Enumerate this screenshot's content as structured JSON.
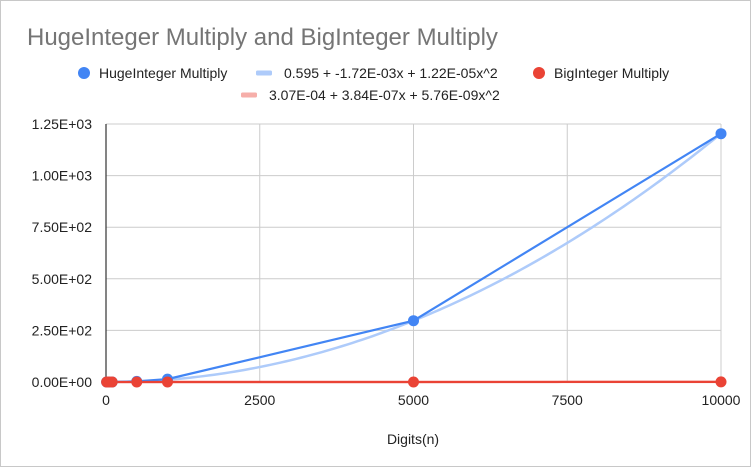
{
  "chart_data": {
    "type": "scatter",
    "title": "HugeInteger Multiply and BigInteger Multiply",
    "xlabel": "Digits(n)",
    "ylabel": "",
    "xlim": [
      0,
      10000
    ],
    "ylim": [
      0,
      1250
    ],
    "x_ticks": [
      {
        "value": 0,
        "label": "0"
      },
      {
        "value": 2500,
        "label": "2500"
      },
      {
        "value": 5000,
        "label": "5000"
      },
      {
        "value": 7500,
        "label": "7500"
      },
      {
        "value": 10000,
        "label": "10000"
      }
    ],
    "y_ticks": [
      {
        "value": 0,
        "label": "0.00E+00"
      },
      {
        "value": 250,
        "label": "2.50E+02"
      },
      {
        "value": 500,
        "label": "5.00E+02"
      },
      {
        "value": 750,
        "label": "7.50E+02"
      },
      {
        "value": 1000,
        "label": "1.00E+03"
      },
      {
        "value": 1250,
        "label": "1.25E+03"
      }
    ],
    "grid": true,
    "legend_position": "top",
    "series": [
      {
        "name": "HugeInteger Multiply",
        "color": "#4285f4",
        "x": [
          10,
          50,
          100,
          500,
          1000,
          5000,
          10000
        ],
        "y": [
          0.01,
          0.05,
          0.15,
          3,
          14,
          297,
          1203
        ],
        "trendline": {
          "label": "0.595 + -1.72E-03x + 1.22E-05x^2",
          "coefficients": [
            0.595,
            -0.00172,
            1.22e-05
          ],
          "color": "#aecbfa"
        }
      },
      {
        "name": "BigInteger Multiply",
        "color": "#ea4335",
        "x": [
          10,
          50,
          100,
          500,
          1000,
          5000,
          10000
        ],
        "y": [
          0.0003,
          0.0003,
          0.0003,
          0.0015,
          0.006,
          0.15,
          0.58
        ],
        "trendline": {
          "label": "3.07E-04 + 3.84E-07x + 5.76E-09x^2",
          "coefficients": [
            0.000307,
            3.84e-07,
            5.76e-09
          ],
          "color": "#f6aea9"
        }
      }
    ]
  }
}
